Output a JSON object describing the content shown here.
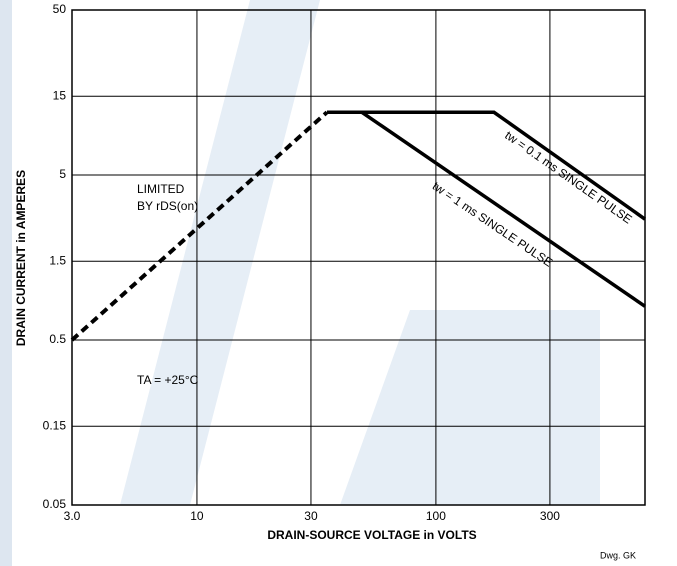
{
  "chart_data": {
    "type": "line",
    "xlabel": "DRAIN-SOURCE VOLTAGE in VOLTS",
    "ylabel": "DRAIN CURRENT in AMPERES",
    "log_x": true,
    "log_y": true,
    "grid": true,
    "xlim": [
      3,
      750
    ],
    "ylim": [
      0.05,
      50
    ],
    "xticks": [
      {
        "value": 3,
        "label": "3.0"
      },
      10,
      30,
      100,
      300
    ],
    "yticks": [
      0.05,
      0.15,
      0.5,
      1.5,
      5,
      15,
      50
    ],
    "series": [
      {
        "color": "#000000",
        "dashed": true,
        "x": [
          3,
          35
        ],
        "values": [
          0.5,
          12
        ]
      },
      {
        "color": "#000000",
        "dashed": false,
        "x": [
          35,
          175,
          750
        ],
        "values": [
          12,
          12,
          2.7
        ]
      },
      {
        "color": "#000000",
        "dashed": false,
        "x": [
          49,
          750
        ],
        "values": [
          12,
          0.8
        ]
      }
    ],
    "annotations": [
      "LIMITED",
      "BY rDS(on)",
      "tw = 0.1 ms SINGLE PULSE",
      "tw = 1 ms SINGLE PULSE",
      "TA = +25°C",
      "Dwg. GK"
    ]
  }
}
